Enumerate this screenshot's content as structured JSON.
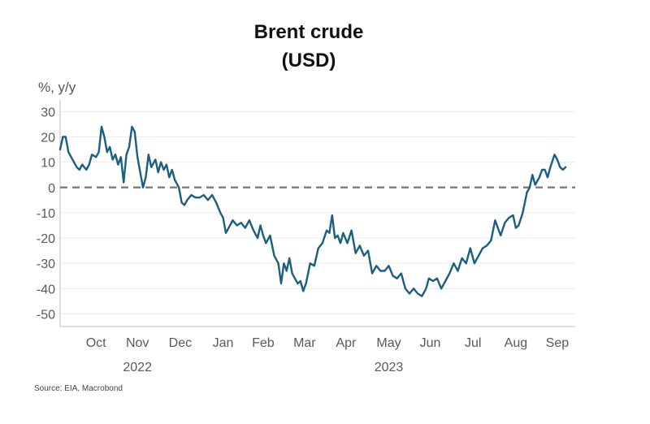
{
  "chart_data": {
    "type": "line",
    "title": "Brent crude",
    "subtitle": "(USD)",
    "ylabel": "%, y/y",
    "source": "Source: EIA, Macrobond",
    "ylim": [
      -55,
      33
    ],
    "yticks": [
      30,
      20,
      10,
      0,
      -10,
      -20,
      -30,
      -40,
      -50
    ],
    "grid": true,
    "xlim": [
      "2022-09-20",
      "2023-09-28"
    ],
    "month_ticks": [
      {
        "label": "Oct",
        "date": "2022-10-16"
      },
      {
        "label": "Nov",
        "date": "2022-11-15"
      },
      {
        "label": "Dec",
        "date": "2022-12-16"
      },
      {
        "label": "Jan",
        "date": "2023-01-16"
      },
      {
        "label": "Feb",
        "date": "2023-02-14"
      },
      {
        "label": "Mar",
        "date": "2023-03-16"
      },
      {
        "label": "Apr",
        "date": "2023-04-15"
      },
      {
        "label": "May",
        "date": "2023-05-16"
      },
      {
        "label": "Jun",
        "date": "2023-06-15"
      },
      {
        "label": "Jul",
        "date": "2023-07-16"
      },
      {
        "label": "Aug",
        "date": "2023-08-16"
      },
      {
        "label": "Sep",
        "date": "2023-09-15"
      }
    ],
    "year_labels": [
      {
        "label": "2022",
        "date": "2022-11-15"
      },
      {
        "label": "2023",
        "date": "2023-05-16"
      }
    ],
    "reference_line": {
      "y": 0,
      "style": "dashed",
      "color": "#808080"
    },
    "series": [
      {
        "color": "#1a5e80",
        "points": [
          [
            "2022-09-20",
            15
          ],
          [
            "2022-09-22",
            20
          ],
          [
            "2022-09-24",
            20
          ],
          [
            "2022-09-26",
            14
          ],
          [
            "2022-09-28",
            12
          ],
          [
            "2022-09-30",
            10
          ],
          [
            "2022-10-02",
            8
          ],
          [
            "2022-10-04",
            7
          ],
          [
            "2022-10-06",
            9
          ],
          [
            "2022-10-09",
            7
          ],
          [
            "2022-10-11",
            9
          ],
          [
            "2022-10-13",
            13
          ],
          [
            "2022-10-16",
            12
          ],
          [
            "2022-10-18",
            14
          ],
          [
            "2022-10-20",
            24
          ],
          [
            "2022-10-22",
            20
          ],
          [
            "2022-10-24",
            14
          ],
          [
            "2022-10-26",
            16
          ],
          [
            "2022-10-28",
            11
          ],
          [
            "2022-10-30",
            13
          ],
          [
            "2022-11-01",
            9
          ],
          [
            "2022-11-03",
            12
          ],
          [
            "2022-11-05",
            2
          ],
          [
            "2022-11-07",
            13
          ],
          [
            "2022-11-09",
            16
          ],
          [
            "2022-11-11",
            24
          ],
          [
            "2022-11-13",
            22
          ],
          [
            "2022-11-15",
            12
          ],
          [
            "2022-11-17",
            6
          ],
          [
            "2022-11-19",
            0
          ],
          [
            "2022-11-21",
            4
          ],
          [
            "2022-11-23",
            13
          ],
          [
            "2022-11-25",
            8
          ],
          [
            "2022-11-28",
            11
          ],
          [
            "2022-11-30",
            6
          ],
          [
            "2022-12-02",
            10
          ],
          [
            "2022-12-04",
            7
          ],
          [
            "2022-12-06",
            9
          ],
          [
            "2022-12-08",
            4
          ],
          [
            "2022-12-10",
            7
          ],
          [
            "2022-12-12",
            3
          ],
          [
            "2022-12-15",
            0
          ],
          [
            "2022-12-17",
            -6
          ],
          [
            "2022-12-19",
            -7
          ],
          [
            "2022-12-21",
            -5
          ],
          [
            "2022-12-24",
            -3
          ],
          [
            "2022-12-27",
            -4
          ],
          [
            "2022-12-30",
            -4
          ],
          [
            "2023-01-02",
            -3
          ],
          [
            "2023-01-05",
            -5
          ],
          [
            "2023-01-08",
            -3
          ],
          [
            "2023-01-11",
            -6
          ],
          [
            "2023-01-14",
            -10
          ],
          [
            "2023-01-16",
            -12
          ],
          [
            "2023-01-18",
            -18
          ],
          [
            "2023-01-20",
            -16
          ],
          [
            "2023-01-23",
            -13
          ],
          [
            "2023-01-26",
            -15
          ],
          [
            "2023-01-29",
            -14
          ],
          [
            "2023-02-01",
            -16
          ],
          [
            "2023-02-04",
            -13
          ],
          [
            "2023-02-07",
            -17
          ],
          [
            "2023-02-10",
            -20
          ],
          [
            "2023-02-12",
            -15
          ],
          [
            "2023-02-14",
            -19
          ],
          [
            "2023-02-16",
            -22
          ],
          [
            "2023-02-19",
            -19
          ],
          [
            "2023-02-22",
            -27
          ],
          [
            "2023-02-25",
            -30
          ],
          [
            "2023-02-27",
            -38
          ],
          [
            "2023-03-01",
            -30
          ],
          [
            "2023-03-03",
            -33
          ],
          [
            "2023-03-05",
            -28
          ],
          [
            "2023-03-07",
            -34
          ],
          [
            "2023-03-09",
            -36
          ],
          [
            "2023-03-11",
            -38
          ],
          [
            "2023-03-13",
            -37
          ],
          [
            "2023-03-15",
            -41
          ],
          [
            "2023-03-17",
            -38
          ],
          [
            "2023-03-20",
            -30
          ],
          [
            "2023-03-23",
            -31
          ],
          [
            "2023-03-26",
            -24
          ],
          [
            "2023-03-29",
            -22
          ],
          [
            "2023-04-01",
            -17
          ],
          [
            "2023-04-03",
            -18
          ],
          [
            "2023-04-05",
            -11
          ],
          [
            "2023-04-07",
            -20
          ],
          [
            "2023-04-09",
            -19
          ],
          [
            "2023-04-11",
            -22
          ],
          [
            "2023-04-13",
            -18
          ],
          [
            "2023-04-16",
            -22
          ],
          [
            "2023-04-19",
            -17
          ],
          [
            "2023-04-22",
            -26
          ],
          [
            "2023-04-25",
            -23
          ],
          [
            "2023-04-28",
            -27
          ],
          [
            "2023-05-01",
            -25
          ],
          [
            "2023-05-04",
            -34
          ],
          [
            "2023-05-07",
            -31
          ],
          [
            "2023-05-10",
            -33
          ],
          [
            "2023-05-13",
            -33
          ],
          [
            "2023-05-16",
            -31
          ],
          [
            "2023-05-19",
            -35
          ],
          [
            "2023-05-22",
            -36
          ],
          [
            "2023-05-25",
            -34
          ],
          [
            "2023-05-28",
            -40
          ],
          [
            "2023-05-31",
            -42
          ],
          [
            "2023-06-03",
            -40
          ],
          [
            "2023-06-06",
            -42
          ],
          [
            "2023-06-09",
            -43
          ],
          [
            "2023-06-12",
            -40
          ],
          [
            "2023-06-14",
            -36
          ],
          [
            "2023-06-17",
            -37
          ],
          [
            "2023-06-20",
            -36
          ],
          [
            "2023-06-23",
            -40
          ],
          [
            "2023-06-26",
            -37
          ],
          [
            "2023-06-29",
            -34
          ],
          [
            "2023-07-02",
            -30
          ],
          [
            "2023-07-05",
            -33
          ],
          [
            "2023-07-08",
            -28
          ],
          [
            "2023-07-11",
            -30
          ],
          [
            "2023-07-14",
            -24
          ],
          [
            "2023-07-17",
            -30
          ],
          [
            "2023-07-20",
            -27
          ],
          [
            "2023-07-23",
            -24
          ],
          [
            "2023-07-26",
            -23
          ],
          [
            "2023-07-29",
            -21
          ],
          [
            "2023-08-01",
            -13
          ],
          [
            "2023-08-03",
            -16
          ],
          [
            "2023-08-05",
            -19
          ],
          [
            "2023-08-08",
            -14
          ],
          [
            "2023-08-11",
            -12
          ],
          [
            "2023-08-14",
            -11
          ],
          [
            "2023-08-16",
            -16
          ],
          [
            "2023-08-18",
            -15
          ],
          [
            "2023-08-21",
            -10
          ],
          [
            "2023-08-24",
            -2
          ],
          [
            "2023-08-26",
            0
          ],
          [
            "2023-08-28",
            5
          ],
          [
            "2023-08-30",
            1
          ],
          [
            "2023-09-02",
            4
          ],
          [
            "2023-09-04",
            7
          ],
          [
            "2023-09-06",
            7
          ],
          [
            "2023-09-08",
            4
          ],
          [
            "2023-09-10",
            8
          ],
          [
            "2023-09-13",
            13
          ],
          [
            "2023-09-15",
            11
          ],
          [
            "2023-09-17",
            8
          ],
          [
            "2023-09-19",
            7
          ],
          [
            "2023-09-21",
            8
          ]
        ]
      }
    ]
  },
  "colors": {
    "line": "#1a5e80",
    "zero_line": "#808080",
    "grid": "#ebebeb",
    "axis": "#bfbfbf",
    "text": "#595959"
  }
}
